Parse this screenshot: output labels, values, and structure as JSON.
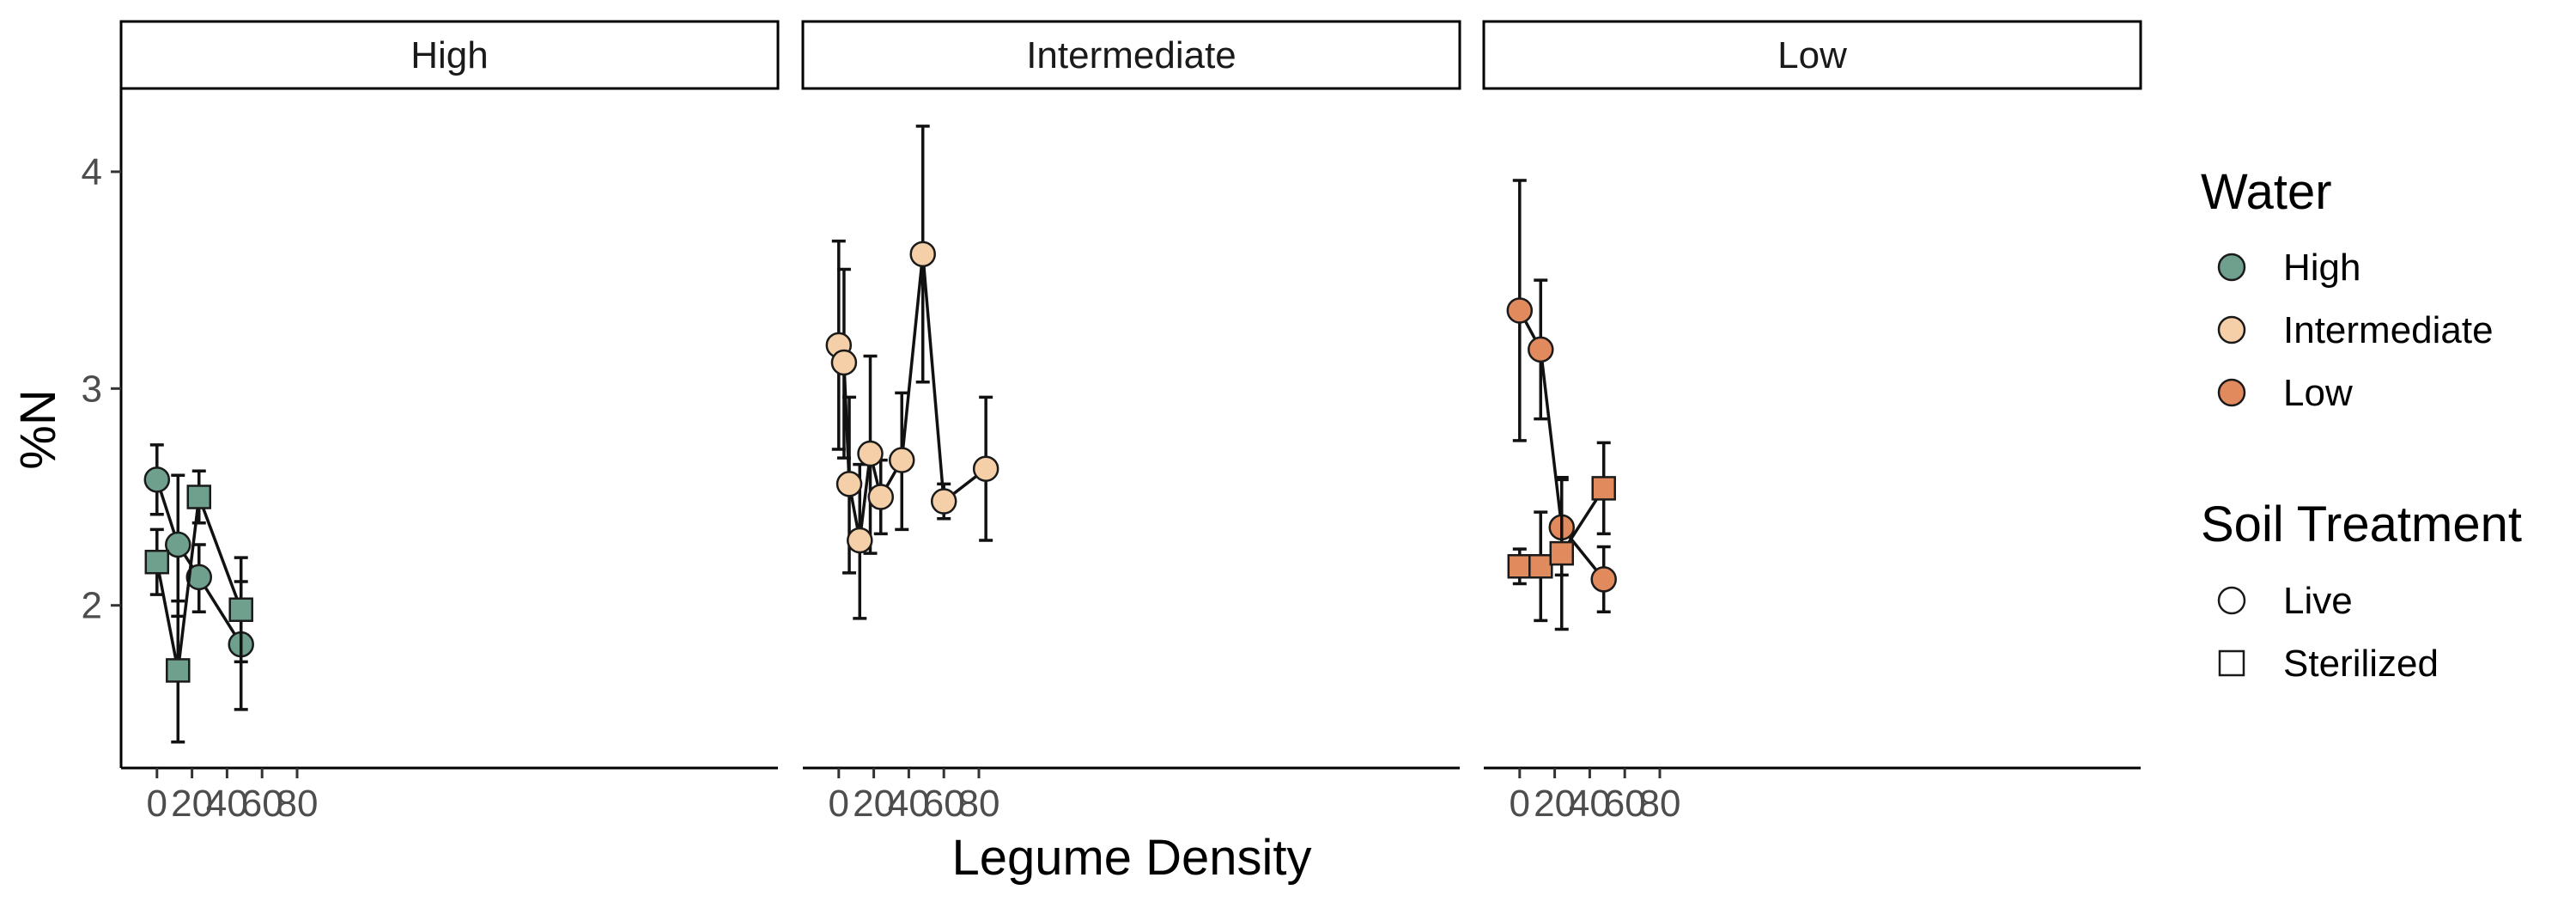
{
  "chart_data": {
    "type": "line",
    "xlabel": "Legume Density",
    "ylabel": "%N",
    "xlim": [
      -5,
      90
    ],
    "ylim": [
      1.25,
      4.38
    ],
    "x_ticks": [
      0,
      20,
      40,
      60,
      80
    ],
    "y_ticks": [
      2,
      3,
      4
    ],
    "grid": false,
    "legend_placement": "right",
    "colors": {
      "High": "#6fa08d",
      "Intermediate": "#f5cfa7",
      "Low": "#e08a5e",
      "outline": "#1a1a1a"
    },
    "legend": {
      "water_title": "Water",
      "water_items": [
        "High",
        "Intermediate",
        "Low"
      ],
      "soil_title": "Soil Treatment",
      "soil_items": [
        {
          "label": "Live",
          "shape": "circle"
        },
        {
          "label": "Sterilized",
          "shape": "square"
        }
      ]
    },
    "facets": [
      {
        "label": "High",
        "series": [
          {
            "water": "High",
            "soil": "Live",
            "shape": "circle",
            "points": [
              {
                "x": 0,
                "y": 2.58,
                "lo": 2.42,
                "hi": 2.74
              },
              {
                "x": 12,
                "y": 2.28,
                "lo": 1.95,
                "hi": 2.6
              },
              {
                "x": 24,
                "y": 2.13,
                "lo": 1.97,
                "hi": 2.28
              },
              {
                "x": 48,
                "y": 1.82,
                "lo": 1.52,
                "hi": 2.11
              }
            ]
          },
          {
            "water": "High",
            "soil": "Sterilized",
            "shape": "square",
            "points": [
              {
                "x": 0,
                "y": 2.2,
                "lo": 2.05,
                "hi": 2.35
              },
              {
                "x": 12,
                "y": 1.7,
                "lo": 1.37,
                "hi": 2.02
              },
              {
                "x": 24,
                "y": 2.5,
                "lo": 2.38,
                "hi": 2.62
              },
              {
                "x": 48,
                "y": 1.98,
                "lo": 1.74,
                "hi": 2.22
              }
            ]
          }
        ]
      },
      {
        "label": "Intermediate",
        "series": [
          {
            "water": "Intermediate",
            "soil": "Live",
            "shape": "circle",
            "points": [
              {
                "x": 0,
                "y": 3.2,
                "lo": 2.72,
                "hi": 3.68
              },
              {
                "x": 3,
                "y": 3.12,
                "lo": 2.68,
                "hi": 3.55
              },
              {
                "x": 6,
                "y": 2.56,
                "lo": 2.15,
                "hi": 2.96
              },
              {
                "x": 12,
                "y": 2.3,
                "lo": 1.94,
                "hi": 2.65
              },
              {
                "x": 18,
                "y": 2.7,
                "lo": 2.24,
                "hi": 3.15
              },
              {
                "x": 24,
                "y": 2.5,
                "lo": 2.33,
                "hi": 2.67
              },
              {
                "x": 36,
                "y": 2.67,
                "lo": 2.35,
                "hi": 2.98
              },
              {
                "x": 48,
                "y": 3.62,
                "lo": 3.03,
                "hi": 4.21
              },
              {
                "x": 60,
                "y": 2.48,
                "lo": 2.4,
                "hi": 2.56
              },
              {
                "x": 84,
                "y": 2.63,
                "lo": 2.3,
                "hi": 2.96
              }
            ]
          }
        ]
      },
      {
        "label": "Low",
        "series": [
          {
            "water": "Low",
            "soil": "Live",
            "shape": "circle",
            "points": [
              {
                "x": 0,
                "y": 3.36,
                "lo": 2.76,
                "hi": 3.96
              },
              {
                "x": 12,
                "y": 3.18,
                "lo": 2.86,
                "hi": 3.5
              },
              {
                "x": 24,
                "y": 2.36,
                "lo": 2.14,
                "hi": 2.58
              },
              {
                "x": 48,
                "y": 2.12,
                "lo": 1.97,
                "hi": 2.27
              }
            ]
          },
          {
            "water": "Low",
            "soil": "Sterilized",
            "shape": "square",
            "points": [
              {
                "x": 0,
                "y": 2.18,
                "lo": 2.1,
                "hi": 2.26
              },
              {
                "x": 12,
                "y": 2.18,
                "lo": 1.93,
                "hi": 2.43
              },
              {
                "x": 24,
                "y": 2.24,
                "lo": 1.89,
                "hi": 2.59
              },
              {
                "x": 48,
                "y": 2.54,
                "lo": 2.33,
                "hi": 2.75
              }
            ]
          }
        ]
      }
    ]
  }
}
